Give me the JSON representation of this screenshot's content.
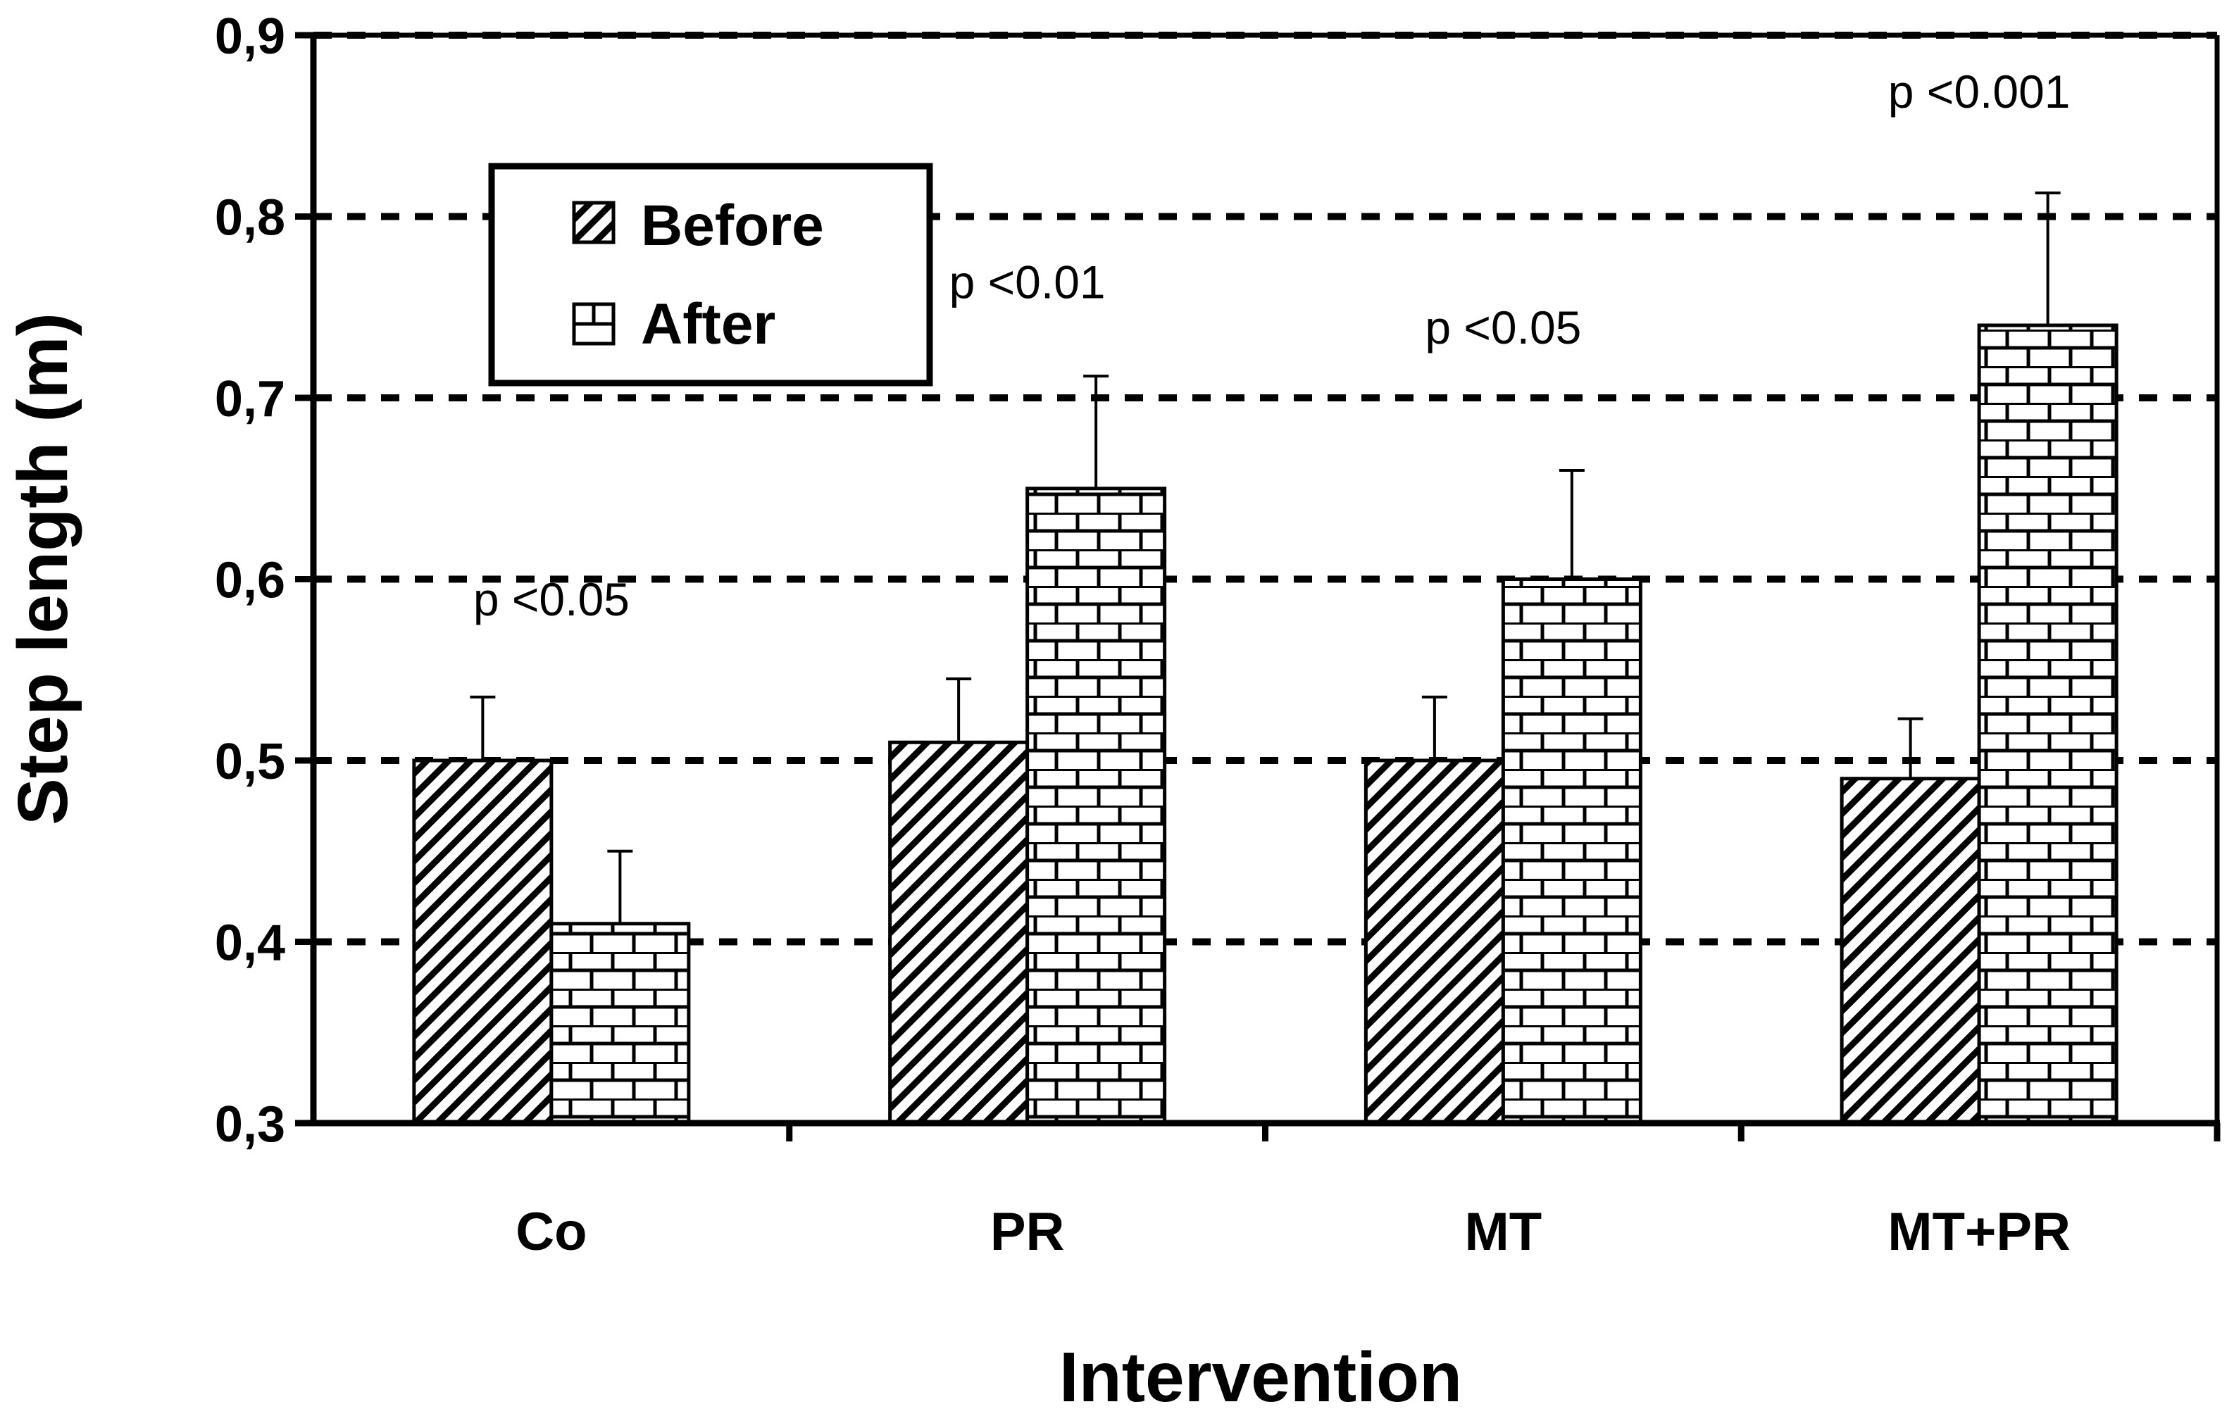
{
  "chart_data": {
    "type": "bar",
    "title": "",
    "xlabel": "Intervention",
    "ylabel": "Step length (m)",
    "ylim": [
      0.3,
      0.9
    ],
    "yticks": [
      0.3,
      0.4,
      0.5,
      0.6,
      0.7,
      0.8,
      0.9
    ],
    "ytick_labels": [
      "0,3",
      "0,4",
      "0,5",
      "0,6",
      "0,7",
      "0,8",
      "0,9"
    ],
    "grid": "dashed horizontal",
    "legend_position": "top-left",
    "categories": [
      "Co",
      "PR",
      "MT",
      "MT+PR"
    ],
    "series": [
      {
        "name": "Before",
        "pattern": "diagonal-hatch",
        "values": [
          0.5,
          0.51,
          0.5,
          0.49
        ],
        "errors": [
          0.035,
          0.035,
          0.035,
          0.033
        ]
      },
      {
        "name": "After",
        "pattern": "brick",
        "values": [
          0.41,
          0.65,
          0.6,
          0.74
        ],
        "errors": [
          0.04,
          0.062,
          0.06,
          0.073
        ]
      }
    ],
    "annotations": [
      {
        "category": "Co",
        "text": "p <0.05",
        "y": 0.58
      },
      {
        "category": "PR",
        "text": "p <0.01",
        "y": 0.755
      },
      {
        "category": "MT",
        "text": "p <0.05",
        "y": 0.73
      },
      {
        "category": "MT+PR",
        "text": "p <0.001",
        "y": 0.86
      }
    ]
  },
  "colors": {
    "axis": "#000000",
    "bar_fill": "#ffffff",
    "pattern": "#000000"
  }
}
